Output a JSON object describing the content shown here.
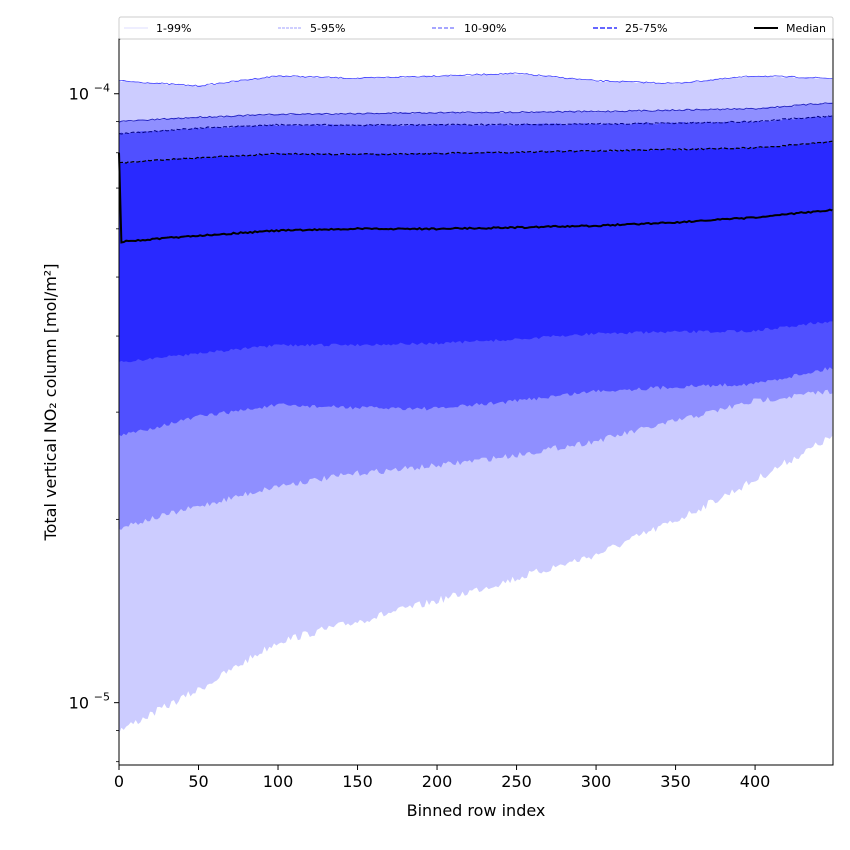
{
  "chart_data": {
    "type": "area",
    "title": "",
    "xlabel": "Binned row index",
    "ylabel": "Total vertical NO₂ column [mol/m²]",
    "yscale": "log",
    "xlim": [
      0,
      449
    ],
    "ylim": [
      7.9e-06,
      0.000123
    ],
    "xticks": [
      0,
      50,
      100,
      150,
      200,
      250,
      300,
      350,
      400
    ],
    "xtick_labels": [
      "0",
      "50",
      "100",
      "150",
      "200",
      "250",
      "300",
      "350",
      "400"
    ],
    "yticks": [
      1e-05,
      0.0001
    ],
    "ytick_labels": [
      {
        "base": "10",
        "exp": "−5"
      },
      {
        "base": "10",
        "exp": "−4"
      }
    ],
    "legend_position": "top (above plot, one row)",
    "legend": [
      {
        "label": "1-99%",
        "color": "#ccccff"
      },
      {
        "label": "5-95%",
        "color": "#8f8fff"
      },
      {
        "label": "10-90%",
        "color": "#5050ff"
      },
      {
        "label": "25-75%",
        "color": "#2929ff"
      },
      {
        "label": "Median",
        "color": "#000000"
      }
    ],
    "x": [
      0,
      50,
      100,
      150,
      200,
      250,
      300,
      350,
      400,
      449
    ],
    "bands": [
      {
        "name": "1-99%",
        "color": "#ccccff",
        "lower": [
          8.99e-06,
          1.05e-05,
          1.26e-05,
          1.36e-05,
          1.47e-05,
          1.6e-05,
          1.75e-05,
          1.99e-05,
          2.32e-05,
          2.74e-05
        ],
        "upper": [
          0.000105,
          0.000103,
          0.000107,
          0.000106,
          0.000107,
          0.000108,
          0.000105,
          0.000104,
          0.000107,
          0.000106
        ]
      },
      {
        "name": "5-95%",
        "color": "#8f8fff",
        "lower": [
          1.94e-05,
          2.1e-05,
          2.27e-05,
          2.38e-05,
          2.45e-05,
          2.55e-05,
          2.69e-05,
          2.9e-05,
          3.13e-05,
          3.25e-05
        ],
        "upper": [
          9e-05,
          9.15e-05,
          9.25e-05,
          9.28e-05,
          9.31e-05,
          9.33e-05,
          9.35e-05,
          9.4e-05,
          9.45e-05,
          9.67e-05
        ]
      },
      {
        "name": "10-90%",
        "color": "#5050ff",
        "lower": [
          2.74e-05,
          2.95e-05,
          3.08e-05,
          3.05e-05,
          3.04e-05,
          3.13e-05,
          3.25e-05,
          3.3e-05,
          3.34e-05,
          3.55e-05
        ],
        "upper": [
          8.6e-05,
          8.78e-05,
          8.89e-05,
          8.88e-05,
          8.89e-05,
          8.9e-05,
          8.92e-05,
          8.95e-05,
          9e-05,
          9.2e-05
        ]
      },
      {
        "name": "25-75%",
        "color": "#2929ff",
        "lower": [
          3.62e-05,
          3.75e-05,
          3.86e-05,
          3.87e-05,
          3.89e-05,
          3.95e-05,
          4.04e-05,
          4.06e-05,
          4.08e-05,
          4.24e-05
        ],
        "upper": [
          7.7e-05,
          7.85e-05,
          7.97e-05,
          7.95e-05,
          7.98e-05,
          8.02e-05,
          8.06e-05,
          8.1e-05,
          8.15e-05,
          8.34e-05
        ]
      }
    ],
    "median": [
      5.71e-05,
      5.85e-05,
      5.96e-05,
      6e-05,
      6e-05,
      6.03e-05,
      6.07e-05,
      6.15e-05,
      6.26e-05,
      6.45e-05
    ]
  }
}
